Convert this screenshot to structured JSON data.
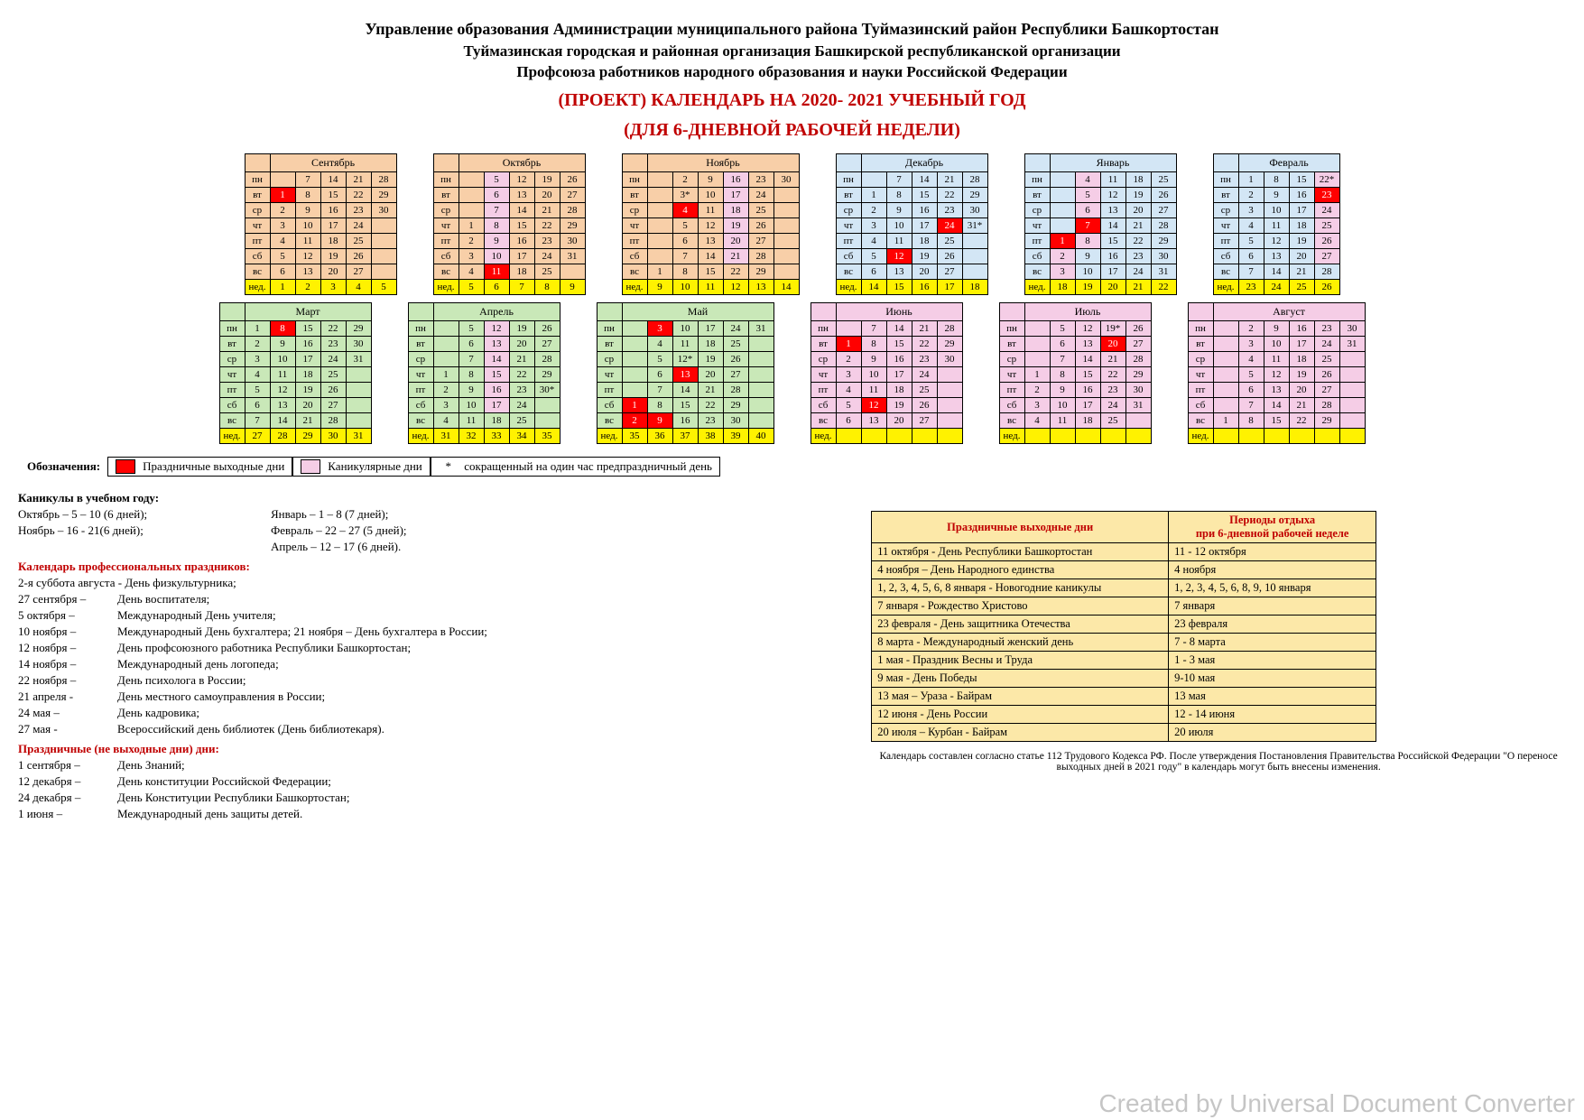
{
  "header": {
    "l1": "Управление образования Администрации муниципального района Туймазинский район Республики Башкортостан",
    "l2": "Туймазинская городская и районная организация Башкирской республиканской организации",
    "l3": "Профсоюза работников народного образования и науки Российской Федерации",
    "t1": "(ПРОЕКТ) КАЛЕНДАРЬ НА 2020- 2021 УЧЕБНЫЙ ГОД",
    "t2": "(ДЛЯ 6-ДНЕВНОЙ РАБОЧЕЙ НЕДЕЛИ)"
  },
  "colors": {
    "peach": "#f8cfa8",
    "pink": "#f5cde6",
    "blue": "#d3e6f5",
    "green": "#c9e8b8",
    "yellow": "#fff200",
    "red": "#ff0000",
    "hol_bg": "#fce8a8"
  },
  "dows": [
    "пн",
    "вт",
    "ср",
    "чт",
    "пт",
    "сб",
    "вс",
    "нед."
  ],
  "months": [
    {
      "name": "Сентябрь",
      "bg": "peach",
      "grid": [
        [
          "",
          "7",
          "14",
          "21",
          "28"
        ],
        [
          "1!r",
          "8",
          "15",
          "22",
          "29"
        ],
        [
          "2",
          "9",
          "16",
          "23",
          "30"
        ],
        [
          "3",
          "10",
          "17",
          "24",
          ""
        ],
        [
          "4",
          "11",
          "18",
          "25",
          ""
        ],
        [
          "5",
          "12",
          "19",
          "26",
          ""
        ],
        [
          "6",
          "13",
          "20",
          "27",
          ""
        ],
        [
          "1!y",
          "2!y",
          "3!y",
          "4!y",
          "5!y"
        ]
      ]
    },
    {
      "name": "Октябрь",
      "bg": "peach",
      "grid": [
        [
          "",
          "5!p",
          "12",
          "19",
          "26"
        ],
        [
          "",
          "6!p",
          "13",
          "20",
          "27"
        ],
        [
          "",
          "7!p",
          "14",
          "21",
          "28"
        ],
        [
          "1",
          "8!p",
          "15",
          "22",
          "29"
        ],
        [
          "2",
          "9!p",
          "16",
          "23",
          "30"
        ],
        [
          "3",
          "10!p",
          "17",
          "24",
          "31"
        ],
        [
          "4",
          "11!r",
          "18",
          "25",
          ""
        ],
        [
          "5!y",
          "6!y",
          "7!y",
          "8!y",
          "9!y"
        ]
      ]
    },
    {
      "name": "Ноябрь",
      "bg": "peach",
      "grid": [
        [
          "",
          "2",
          "9",
          "16!p",
          "23",
          "30"
        ],
        [
          "",
          "3*",
          "10",
          "17!p",
          "24",
          ""
        ],
        [
          "",
          "4!r",
          "11",
          "18!p",
          "25",
          ""
        ],
        [
          "",
          "5",
          "12",
          "19!p",
          "26",
          ""
        ],
        [
          "",
          "6",
          "13",
          "20!p",
          "27",
          ""
        ],
        [
          "",
          "7",
          "14",
          "21!p",
          "28",
          ""
        ],
        [
          "1",
          "8",
          "15",
          "22",
          "29",
          ""
        ],
        [
          "9!y",
          "10!y",
          "11!y",
          "12!y",
          "13!y",
          "14!y"
        ]
      ]
    },
    {
      "name": "Декабрь",
      "bg": "blue",
      "grid": [
        [
          "",
          "7",
          "14",
          "21",
          "28"
        ],
        [
          "1",
          "8",
          "15",
          "22",
          "29"
        ],
        [
          "2",
          "9",
          "16",
          "23",
          "30"
        ],
        [
          "3",
          "10",
          "17",
          "24!r",
          "31*"
        ],
        [
          "4",
          "11",
          "18",
          "25",
          ""
        ],
        [
          "5",
          "12!r",
          "19",
          "26",
          ""
        ],
        [
          "6",
          "13",
          "20",
          "27",
          ""
        ],
        [
          "14!y",
          "15!y",
          "16!y",
          "17!y",
          "18!y"
        ]
      ]
    },
    {
      "name": "Январь",
      "bg": "blue",
      "grid": [
        [
          "",
          "4!p",
          "11",
          "18",
          "25"
        ],
        [
          "",
          "5!p",
          "12",
          "19",
          "26"
        ],
        [
          "",
          "6!p",
          "13",
          "20",
          "27"
        ],
        [
          "",
          "7!r",
          "14",
          "21",
          "28"
        ],
        [
          "1!r",
          "8!p",
          "15",
          "22",
          "29"
        ],
        [
          "2!p",
          "9",
          "16",
          "23",
          "30"
        ],
        [
          "3!p",
          "10",
          "17",
          "24",
          "31"
        ],
        [
          "18!y",
          "19!y",
          "20!y",
          "21!y",
          "22!y"
        ]
      ]
    },
    {
      "name": "Февраль",
      "bg": "blue",
      "grid": [
        [
          "1",
          "8",
          "15",
          "22*!p"
        ],
        [
          "2",
          "9",
          "16",
          "23!r"
        ],
        [
          "3",
          "10",
          "17",
          "24!p"
        ],
        [
          "4",
          "11",
          "18",
          "25!p"
        ],
        [
          "5",
          "12",
          "19",
          "26!p"
        ],
        [
          "6",
          "13",
          "20",
          "27!p"
        ],
        [
          "7",
          "14",
          "21",
          "28"
        ],
        [
          "23!y",
          "24!y",
          "25!y",
          "26!y"
        ]
      ]
    },
    {
      "name": "Март",
      "bg": "green",
      "grid": [
        [
          "1",
          "8!r",
          "15",
          "22",
          "29"
        ],
        [
          "2",
          "9",
          "16",
          "23",
          "30"
        ],
        [
          "3",
          "10",
          "17",
          "24",
          "31"
        ],
        [
          "4",
          "11",
          "18",
          "25",
          ""
        ],
        [
          "5",
          "12",
          "19",
          "26",
          ""
        ],
        [
          "6",
          "13",
          "20",
          "27",
          ""
        ],
        [
          "7",
          "14",
          "21",
          "28",
          ""
        ],
        [
          "27!y",
          "28!y",
          "29!y",
          "30!y",
          "31!y"
        ]
      ]
    },
    {
      "name": "Апрель",
      "bg": "green",
      "grid": [
        [
          "",
          "5",
          "12!p",
          "19",
          "26"
        ],
        [
          "",
          "6",
          "13!p",
          "20",
          "27"
        ],
        [
          "",
          "7",
          "14!p",
          "21",
          "28"
        ],
        [
          "1",
          "8",
          "15!p",
          "22",
          "29"
        ],
        [
          "2",
          "9",
          "16!p",
          "23",
          "30*"
        ],
        [
          "3",
          "10",
          "17!p",
          "24",
          ""
        ],
        [
          "4",
          "11",
          "18",
          "25",
          ""
        ],
        [
          "31!y",
          "32!y",
          "33!y",
          "34!y",
          "35!y"
        ]
      ]
    },
    {
      "name": "Май",
      "bg": "green",
      "grid": [
        [
          "",
          "3!r",
          "10",
          "17",
          "24",
          "31"
        ],
        [
          "",
          "4",
          "11",
          "18",
          "25",
          ""
        ],
        [
          "",
          "5",
          "12*",
          "19",
          "26",
          ""
        ],
        [
          "",
          "6",
          "13!r",
          "20",
          "27",
          ""
        ],
        [
          "",
          "7",
          "14",
          "21",
          "28",
          ""
        ],
        [
          "1!r",
          "8",
          "15",
          "22",
          "29",
          ""
        ],
        [
          "2!r",
          "9!r",
          "16",
          "23",
          "30",
          ""
        ],
        [
          "35!y",
          "36!y",
          "37!y",
          "38!y",
          "39!y",
          "40!y"
        ]
      ]
    },
    {
      "name": "Июнь",
      "bg": "pink",
      "grid": [
        [
          "",
          "7",
          "14",
          "21",
          "28"
        ],
        [
          "1!r",
          "8",
          "15",
          "22",
          "29"
        ],
        [
          "2",
          "9",
          "16",
          "23",
          "30"
        ],
        [
          "3",
          "10",
          "17",
          "24",
          ""
        ],
        [
          "4",
          "11",
          "18",
          "25",
          ""
        ],
        [
          "5",
          "12!r",
          "19",
          "26",
          ""
        ],
        [
          "6",
          "13",
          "20",
          "27",
          ""
        ],
        [
          "",
          "",
          "",
          "",
          ""
        ]
      ]
    },
    {
      "name": "Июль",
      "bg": "pink",
      "grid": [
        [
          "",
          "5",
          "12",
          "19*",
          "26"
        ],
        [
          "",
          "6",
          "13",
          "20!r",
          "27"
        ],
        [
          "",
          "7",
          "14",
          "21",
          "28"
        ],
        [
          "1",
          "8",
          "15",
          "22",
          "29"
        ],
        [
          "2",
          "9",
          "16",
          "23",
          "30"
        ],
        [
          "3",
          "10",
          "17",
          "24",
          "31"
        ],
        [
          "4",
          "11",
          "18",
          "25",
          ""
        ],
        [
          "",
          "",
          "",
          "",
          ""
        ]
      ]
    },
    {
      "name": "Август",
      "bg": "pink",
      "grid": [
        [
          "",
          "2",
          "9",
          "16",
          "23",
          "30"
        ],
        [
          "",
          "3",
          "10",
          "17",
          "24",
          "31"
        ],
        [
          "",
          "4",
          "11",
          "18",
          "25",
          ""
        ],
        [
          "",
          "5",
          "12",
          "19",
          "26",
          ""
        ],
        [
          "",
          "6",
          "13",
          "20",
          "27",
          ""
        ],
        [
          "",
          "7",
          "14",
          "21",
          "28",
          ""
        ],
        [
          "1",
          "8",
          "15",
          "22",
          "29",
          ""
        ],
        [
          "",
          "",
          "",
          "",
          "",
          ""
        ]
      ]
    }
  ],
  "legend": {
    "title": "Обозначения:",
    "items": [
      {
        "sw": "red",
        "txt": "Праздничные выходные дни"
      },
      {
        "sw": "pink",
        "txt": "Каникулярные дни"
      },
      {
        "sw": "",
        "txt": "сокращенный на один час предпраздничный день",
        "pre": "*"
      }
    ]
  },
  "kanik": {
    "title": "Каникулы в учебном году:",
    "lines": [
      [
        "Октябрь –  5 – 10 (6 дней);",
        "Январь –   1 – 8 (7 дней);"
      ],
      [
        "Ноябрь –   16 - 21(6 дней);",
        "Февраль – 22 – 27 (5 дней);"
      ],
      [
        "",
        "Апрель –   12 – 17 (6 дней)."
      ]
    ]
  },
  "prof": {
    "title": "Календарь профессиональных праздников:",
    "lines": [
      [
        "2-я суббота августа - День физкультурника;",
        ""
      ],
      [
        "27 сентября –",
        "День воспитателя;"
      ],
      [
        "5 октября –",
        "Международный День учителя;"
      ],
      [
        "10 ноября –",
        "Международный День бухгалтера; 21 ноября – День бухгалтера в России;"
      ],
      [
        "12 ноября –",
        "День профсоюзного работника Республики Башкортостан;"
      ],
      [
        "14 ноября –",
        "Международный день логопеда;"
      ],
      [
        "22 ноября –",
        "День психолога в России;"
      ],
      [
        "21 апреля -",
        "День местного самоуправления в России;"
      ],
      [
        "24 мая –",
        "День кадровика;"
      ],
      [
        "27 мая -",
        "Всероссийский день библиотек (День библиотекаря)."
      ]
    ]
  },
  "nonwork": {
    "title": "Праздничные (не выходные дни) дни:",
    "lines": [
      [
        "1 сентября –",
        "День Знаний;"
      ],
      [
        "12 декабря –",
        "День конституции Российской Федерации;"
      ],
      [
        "24 декабря –",
        "День Конституции Республики Башкортостан;"
      ],
      [
        "1 июня –",
        "Международный день защиты детей."
      ]
    ]
  },
  "holtable": {
    "h1": "Праздничные выходные дни",
    "h2": "Периоды отдыха\nпри 6-дневной рабочей неделе",
    "rows": [
      [
        "11 октября - День Республики Башкортостан",
        "11 - 12 октября"
      ],
      [
        "4 ноября – День Народного единства",
        "4 ноября"
      ],
      [
        "1, 2, 3, 4, 5, 6, 8 января - Новогодние каникулы",
        "1, 2, 3, 4, 5, 6, 8, 9, 10 января"
      ],
      [
        "7 января - Рождество Христово",
        "7 января"
      ],
      [
        "23 февраля - День защитника Отечества",
        "23 февраля"
      ],
      [
        "8 марта - Международный женский день",
        "7 - 8  марта"
      ],
      [
        "1 мая - Праздник Весны и Труда",
        "1 - 3  мая"
      ],
      [
        "9 мая - День Победы",
        "9-10 мая"
      ],
      [
        "13 мая  – Ураза - Байрам",
        "13 мая"
      ],
      [
        "12 июня - День России",
        "12 - 14 июня"
      ],
      [
        "20 июля  – Курбан - Байрам",
        "20 июля"
      ]
    ]
  },
  "foot": "Календарь составлен согласно статье 112 Трудового Кодекса РФ. После утверждения Постановления Правительства Российской Федерации  \"О переносе выходных дней в 2021 году\" в календарь могут быть внесены изменения.",
  "watermark": "Created by Universal Document Converter"
}
